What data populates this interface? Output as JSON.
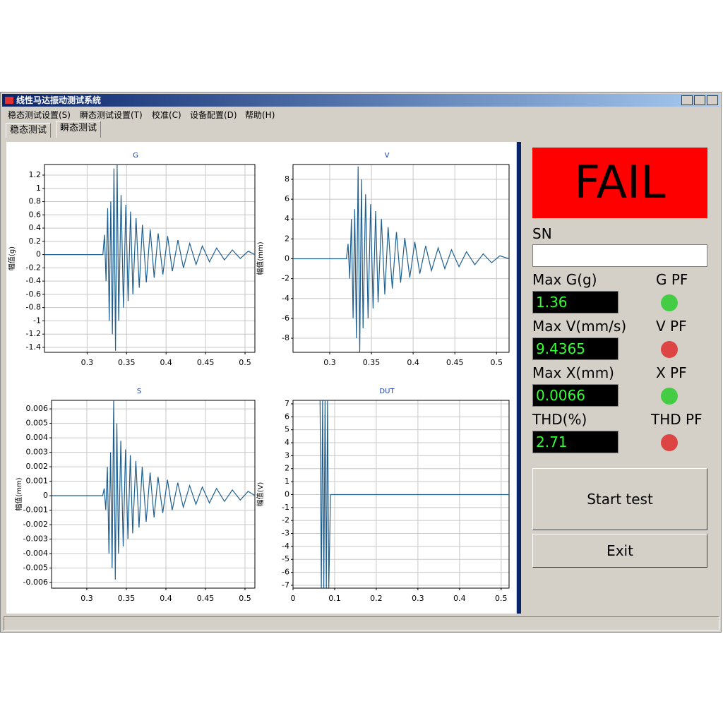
{
  "window": {
    "title": "线性马达振动测试系统"
  },
  "menu": [
    "稳态测试设置(S)",
    "瞬态测试设置(T)",
    "校准(C)",
    "设备配置(D)",
    "帮助(H)"
  ],
  "tabs": [
    "稳态测试",
    "瞬态测试"
  ],
  "charts": [
    {
      "type": "line",
      "title": "G",
      "ylabel": "幅值(g)",
      "color": "#1f5f8f",
      "xlim": [
        0.246,
        0.5125
      ],
      "ylim": [
        -1.475,
        1.36
      ],
      "xticks": [
        0.3,
        0.35,
        0.4,
        0.45,
        0.5
      ],
      "yticks": [
        1.2,
        1,
        0.8,
        0.6,
        0.4,
        0.2,
        0,
        -0.2,
        -0.4,
        -0.6,
        -0.8,
        -1,
        -1.2,
        -1.4
      ],
      "x": [
        0.246,
        0.32,
        0.322,
        0.324,
        0.326,
        0.328,
        0.33,
        0.332,
        0.334,
        0.336,
        0.338,
        0.34,
        0.343,
        0.346,
        0.349,
        0.352,
        0.355,
        0.358,
        0.362,
        0.366,
        0.37,
        0.375,
        0.38,
        0.385,
        0.39,
        0.396,
        0.402,
        0.408,
        0.415,
        0.422,
        0.43,
        0.438,
        0.446,
        0.455,
        0.464,
        0.474,
        0.484,
        0.494,
        0.504,
        0.5125
      ],
      "values": [
        0,
        0,
        0.3,
        -0.4,
        0.7,
        -1.0,
        0.8,
        -1.2,
        1.3,
        -1.45,
        1.35,
        -1.0,
        0.9,
        -0.8,
        0.75,
        -0.7,
        0.65,
        -0.6,
        0.55,
        -0.5,
        0.45,
        -0.42,
        0.38,
        -0.35,
        0.32,
        -0.3,
        0.28,
        -0.25,
        0.22,
        -0.2,
        0.17,
        -0.15,
        0.13,
        -0.11,
        0.1,
        -0.08,
        0.07,
        -0.06,
        0.05,
        0
      ]
    },
    {
      "type": "line",
      "title": "V",
      "ylabel": "幅值(mm)",
      "color": "#1f5f8f",
      "xlim": [
        0.256,
        0.515
      ],
      "ylim": [
        -9.42,
        9.49
      ],
      "xticks": [
        0.3,
        0.35,
        0.4,
        0.45,
        0.5
      ],
      "yticks": [
        8,
        6,
        4,
        2,
        0,
        -2,
        -4,
        -6,
        -8
      ],
      "x": [
        0.256,
        0.32,
        0.322,
        0.324,
        0.326,
        0.328,
        0.33,
        0.332,
        0.334,
        0.336,
        0.338,
        0.34,
        0.343,
        0.346,
        0.349,
        0.352,
        0.355,
        0.358,
        0.362,
        0.366,
        0.37,
        0.375,
        0.38,
        0.385,
        0.39,
        0.396,
        0.402,
        0.408,
        0.415,
        0.422,
        0.43,
        0.438,
        0.446,
        0.455,
        0.464,
        0.474,
        0.484,
        0.494,
        0.504,
        0.515
      ],
      "values": [
        0,
        0,
        1.5,
        -2,
        4,
        -6,
        5,
        -8,
        9.3,
        -9.4,
        8,
        -7,
        6.5,
        -6,
        5.5,
        -5,
        4.8,
        -4.4,
        4,
        -3.6,
        3.2,
        -3,
        2.7,
        -2.4,
        2.1,
        -1.9,
        1.7,
        -1.5,
        1.3,
        -1.2,
        1.1,
        -1.0,
        0.9,
        -0.8,
        0.7,
        -0.6,
        0.5,
        -0.4,
        0.3,
        0
      ]
    },
    {
      "type": "line",
      "title": "S",
      "ylabel": "幅值(mm)",
      "color": "#1f5f8f",
      "xlim": [
        0.2554,
        0.5125
      ],
      "ylim": [
        -0.00639,
        0.00659
      ],
      "xticks": [
        0.3,
        0.35,
        0.4,
        0.45,
        0.5
      ],
      "yticks": [
        0.006,
        0.005,
        0.004,
        0.003,
        0.002,
        0.001,
        0,
        -0.001,
        -0.002,
        -0.003,
        -0.004,
        -0.005,
        -0.006
      ],
      "x": [
        0.2554,
        0.32,
        0.322,
        0.324,
        0.326,
        0.328,
        0.33,
        0.332,
        0.334,
        0.336,
        0.338,
        0.34,
        0.343,
        0.346,
        0.349,
        0.352,
        0.355,
        0.358,
        0.362,
        0.366,
        0.37,
        0.375,
        0.38,
        0.385,
        0.39,
        0.396,
        0.402,
        0.408,
        0.415,
        0.422,
        0.43,
        0.438,
        0.446,
        0.455,
        0.464,
        0.474,
        0.484,
        0.494,
        0.504,
        0.5125
      ],
      "values": [
        0,
        0,
        0.0005,
        -0.001,
        0.002,
        -0.004,
        0.003,
        -0.005,
        0.0066,
        -0.0058,
        0.005,
        -0.004,
        0.0038,
        -0.0035,
        0.0032,
        -0.003,
        0.0028,
        -0.0026,
        0.0024,
        -0.0022,
        0.002,
        -0.0018,
        0.0016,
        -0.0015,
        0.0013,
        -0.0012,
        0.0011,
        -0.001,
        0.0009,
        -0.0008,
        0.0007,
        -0.0006,
        0.0006,
        -0.0005,
        0.0005,
        -0.0004,
        0.0004,
        -0.0003,
        0.0003,
        0
      ]
    },
    {
      "type": "line",
      "title": "DUT",
      "ylabel": "幅值(V)",
      "color": "#1f5f8f",
      "xlim": [
        0,
        0.519
      ],
      "ylim": [
        -7.22,
        7.27
      ],
      "xticks": [
        0,
        0.1,
        0.2,
        0.3,
        0.4,
        0.5
      ],
      "yticks": [
        7,
        6,
        5,
        4,
        3,
        2,
        1,
        0,
        -1,
        -2,
        -3,
        -4,
        -5,
        -6,
        -7
      ],
      "x": [
        0.065,
        0.068,
        0.071,
        0.074,
        0.077,
        0.08,
        0.083,
        0.086,
        0.09,
        0.519
      ],
      "values": [
        7.3,
        -7.2,
        7.3,
        -7.2,
        7.3,
        -7.2,
        7.3,
        -7.2,
        0,
        0
      ]
    }
  ],
  "result": "FAIL",
  "sn_label": "SN",
  "measurements": [
    {
      "label": "Max G(g)",
      "value": "1.36",
      "pf_label": "G PF",
      "lamp_color": "#44cc44"
    },
    {
      "label": "Max V(mm/s)",
      "value": "9.4365",
      "pf_label": "V PF",
      "lamp_color": "#dd4444"
    },
    {
      "label": "Max X(mm)",
      "value": "0.0066",
      "pf_label": "X PF",
      "lamp_color": "#44cc44"
    },
    {
      "label": "THD(%)",
      "value": "2.71",
      "pf_label": "THD PF",
      "lamp_color": "#dd4444"
    }
  ],
  "buttons": [
    "Start test",
    "Exit"
  ]
}
